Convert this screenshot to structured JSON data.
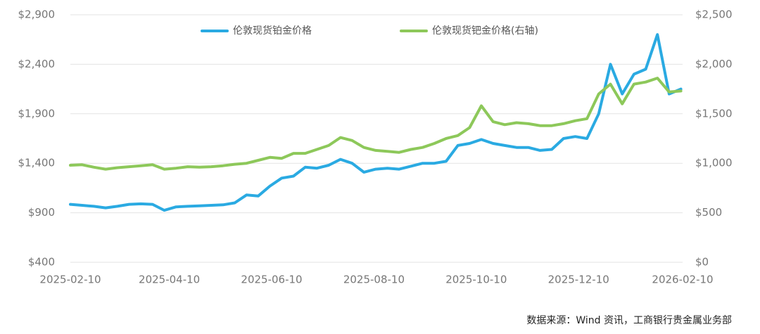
{
  "chart_data": {
    "type": "line",
    "source": "数据来源：Wind 资讯，工商银行贵金属业务部",
    "x": [
      "2025-02-10",
      "2025-02-17",
      "2025-02-24",
      "2025-03-03",
      "2025-03-10",
      "2025-03-17",
      "2025-03-24",
      "2025-03-31",
      "2025-04-07",
      "2025-04-14",
      "2025-04-21",
      "2025-04-28",
      "2025-05-05",
      "2025-05-12",
      "2025-05-19",
      "2025-05-26",
      "2025-06-02",
      "2025-06-09",
      "2025-06-16",
      "2025-06-23",
      "2025-06-30",
      "2025-07-07",
      "2025-07-14",
      "2025-07-21",
      "2025-07-28",
      "2025-08-04",
      "2025-08-11",
      "2025-08-18",
      "2025-08-25",
      "2025-09-01",
      "2025-09-08",
      "2025-09-15",
      "2025-09-22",
      "2025-09-29",
      "2025-10-06",
      "2025-10-13",
      "2025-10-20",
      "2025-10-27",
      "2025-11-03",
      "2025-11-10",
      "2025-11-17",
      "2025-11-24",
      "2025-12-01",
      "2025-12-08",
      "2025-12-15",
      "2025-12-22",
      "2025-12-29",
      "2026-01-05",
      "2026-01-12",
      "2026-01-19",
      "2026-01-26",
      "2026-02-02",
      "2026-02-09"
    ],
    "series": [
      {
        "name": "伦敦现货铂金价格",
        "color": "#2aaae2",
        "axis": "y",
        "values": [
          985,
          975,
          965,
          950,
          965,
          985,
          990,
          985,
          925,
          960,
          965,
          970,
          975,
          980,
          1000,
          1080,
          1070,
          1170,
          1250,
          1270,
          1360,
          1350,
          1380,
          1440,
          1400,
          1310,
          1340,
          1350,
          1340,
          1370,
          1400,
          1400,
          1420,
          1580,
          1600,
          1640,
          1600,
          1580,
          1560,
          1560,
          1530,
          1540,
          1650,
          1670,
          1650,
          1900,
          2400,
          2100,
          2300,
          2350,
          2700,
          2100,
          2150
        ]
      },
      {
        "name": "伦敦现货钯金价格(右轴)",
        "color": "#8dc85a",
        "axis": "y2",
        "values": [
          980,
          985,
          960,
          940,
          955,
          965,
          975,
          985,
          940,
          950,
          965,
          960,
          965,
          975,
          990,
          1000,
          1030,
          1060,
          1050,
          1100,
          1100,
          1140,
          1180,
          1260,
          1230,
          1160,
          1130,
          1120,
          1110,
          1140,
          1160,
          1200,
          1250,
          1280,
          1360,
          1580,
          1420,
          1390,
          1410,
          1400,
          1380,
          1380,
          1400,
          1430,
          1450,
          1700,
          1800,
          1600,
          1800,
          1820,
          1860,
          1720,
          1730
        ]
      }
    ],
    "xlim": [
      "2025-02-10",
      "2026-02-10"
    ],
    "xticks": [
      "2025-02-10",
      "2025-04-10",
      "2025-06-10",
      "2025-08-10",
      "2025-10-10",
      "2025-12-10",
      "2026-02-10"
    ],
    "ylim": [
      400,
      2900
    ],
    "yticks": [
      {
        "value": 400,
        "label": "$400"
      },
      {
        "value": 900,
        "label": "$900"
      },
      {
        "value": 1400,
        "label": "$1,400"
      },
      {
        "value": 1900,
        "label": "$1,900"
      },
      {
        "value": 2400,
        "label": "$2,400"
      },
      {
        "value": 2900,
        "label": "$2,900"
      }
    ],
    "y2lim": [
      0,
      2500
    ],
    "y2ticks": [
      {
        "value": 0,
        "label": "$0"
      },
      {
        "value": 500,
        "label": "$500"
      },
      {
        "value": 1000,
        "label": "$1,000"
      },
      {
        "value": 1500,
        "label": "$1,500"
      },
      {
        "value": 2000,
        "label": "$2,000"
      },
      {
        "value": 2500,
        "label": "$2,500"
      }
    ],
    "grid": true,
    "legend": "top"
  }
}
